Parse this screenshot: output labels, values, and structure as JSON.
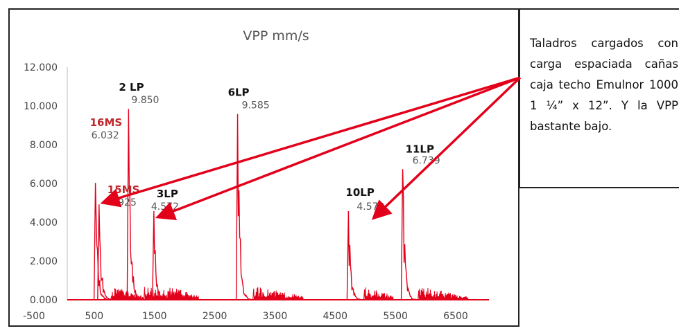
{
  "chart_data": {
    "type": "line",
    "title": "VPP mm/s",
    "xlabel": "",
    "ylabel": "",
    "xlim": [
      -500,
      6500
    ],
    "ylim": [
      0,
      12
    ],
    "x_ticks": [
      "-500",
      "500",
      "1500",
      "2500",
      "3500",
      "4500",
      "5500",
      "6500"
    ],
    "y_ticks": [
      "0.000",
      "2.000",
      "4.000",
      "6.000",
      "8.000",
      "10.000",
      "12.000"
    ],
    "grid": false,
    "series_color": "#e3001b",
    "peaks": [
      {
        "label": "16MS",
        "value_label": "6.032",
        "x": 520,
        "y": 6.032,
        "label_color": "red"
      },
      {
        "label": "15MS",
        "value_label": "4.925",
        "x": 580,
        "y": 4.925,
        "label_color": "red"
      },
      {
        "label": "2 LP",
        "value_label": "9.850",
        "x": 1070,
        "y": 9.85,
        "label_color": "black"
      },
      {
        "label": "3LP",
        "value_label": "4.572",
        "x": 1490,
        "y": 4.572,
        "label_color": "black"
      },
      {
        "label": "6LP",
        "value_label": "9.585",
        "x": 2880,
        "y": 9.585,
        "label_color": "black"
      },
      {
        "label": "10LP",
        "value_label": "4.572",
        "x": 4720,
        "y": 4.572,
        "label_color": "black"
      },
      {
        "label": "11LP",
        "value_label": "6.739",
        "x": 5620,
        "y": 6.739,
        "label_color": "black"
      }
    ]
  },
  "note": {
    "text": "Taladros cargados con carga espaciada cañas caja techo Emulnor 1000 1 ¼” x 12”. Y la VPP bastante bajo."
  }
}
